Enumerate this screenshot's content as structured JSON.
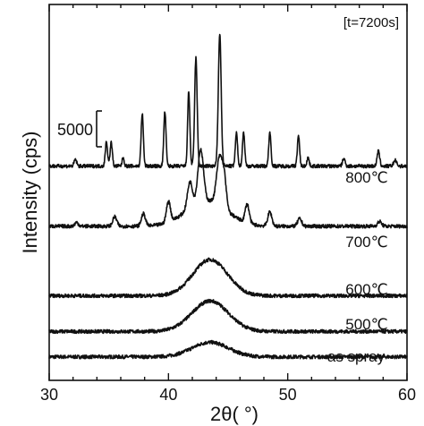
{
  "chart_data": {
    "type": "line",
    "title": "",
    "note": "[t=7200s]",
    "xlabel": "2θ( °)",
    "ylabel": "Intensity (cps)",
    "xlim": [
      30,
      60
    ],
    "x_ticks": [
      30,
      40,
      50,
      60
    ],
    "y_ticks": [],
    "y_values_stacked": true,
    "scale_bar": {
      "label": "5000",
      "value": 5000
    },
    "grid": false,
    "series": [
      {
        "name": "as spray",
        "baseline": 2500,
        "peaks": [
          {
            "x": 43.5,
            "height": 1550,
            "width": 3.6
          }
        ]
      },
      {
        "name": "500℃",
        "baseline": 5200,
        "peaks": [
          {
            "x": 43.5,
            "height": 3250,
            "width": 3.6
          }
        ]
      },
      {
        "name": "600℃",
        "baseline": 9000,
        "peaks": [
          {
            "x": 43.5,
            "height": 3850,
            "width": 3.4
          }
        ]
      },
      {
        "name": "700℃",
        "baseline": 16400,
        "peaks": [
          {
            "x": 43.2,
            "height": 2700,
            "width": 4.0
          },
          {
            "x": 32.3,
            "height": 400,
            "width": 0.35
          },
          {
            "x": 35.5,
            "height": 1000,
            "width": 0.4
          },
          {
            "x": 37.9,
            "height": 1300,
            "width": 0.4
          },
          {
            "x": 40.0,
            "height": 2200,
            "width": 0.4
          },
          {
            "x": 41.8,
            "height": 2800,
            "width": 0.5
          },
          {
            "x": 42.7,
            "height": 5600,
            "width": 0.55
          },
          {
            "x": 44.3,
            "height": 5200,
            "width": 0.6
          },
          {
            "x": 44.7,
            "height": 2500,
            "width": 0.4
          },
          {
            "x": 46.6,
            "height": 2000,
            "width": 0.4
          },
          {
            "x": 48.5,
            "height": 1500,
            "width": 0.4
          },
          {
            "x": 51.0,
            "height": 800,
            "width": 0.4
          },
          {
            "x": 57.7,
            "height": 500,
            "width": 0.4
          }
        ]
      },
      {
        "name": "800℃",
        "baseline": 22800,
        "peaks": [
          {
            "x": 32.2,
            "height": 700,
            "width": 0.25
          },
          {
            "x": 34.8,
            "height": 2600,
            "width": 0.22
          },
          {
            "x": 35.2,
            "height": 2500,
            "width": 0.22
          },
          {
            "x": 36.2,
            "height": 900,
            "width": 0.2
          },
          {
            "x": 37.8,
            "height": 5600,
            "width": 0.22
          },
          {
            "x": 39.7,
            "height": 5800,
            "width": 0.22
          },
          {
            "x": 41.7,
            "height": 7900,
            "width": 0.22
          },
          {
            "x": 42.3,
            "height": 11500,
            "width": 0.25
          },
          {
            "x": 44.3,
            "height": 14100,
            "width": 0.28
          },
          {
            "x": 45.7,
            "height": 3500,
            "width": 0.22
          },
          {
            "x": 46.3,
            "height": 3600,
            "width": 0.22
          },
          {
            "x": 48.5,
            "height": 3600,
            "width": 0.22
          },
          {
            "x": 50.9,
            "height": 3200,
            "width": 0.22
          },
          {
            "x": 51.7,
            "height": 900,
            "width": 0.22
          },
          {
            "x": 54.7,
            "height": 800,
            "width": 0.25
          },
          {
            "x": 57.6,
            "height": 1600,
            "width": 0.25
          },
          {
            "x": 59.0,
            "height": 600,
            "width": 0.3
          }
        ]
      }
    ]
  }
}
